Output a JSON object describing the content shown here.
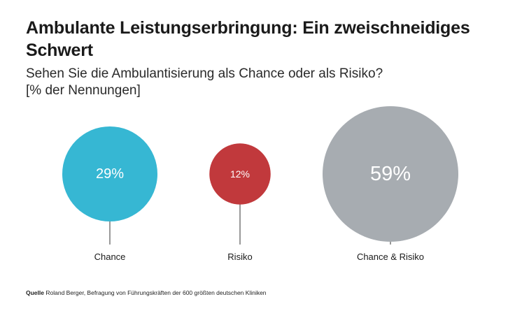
{
  "header": {
    "title": "Ambulante Leistungserbringung: Ein zweischneidiges Schwert",
    "subtitle_line1": "Sehen Sie die Ambulantisierung als Chance oder als Risiko?",
    "subtitle_line2": "[% der Nennungen]"
  },
  "chart_data": {
    "type": "bubble",
    "title": "Ambulante Leistungserbringung: Ein zweischneidiges Schwert",
    "subtitle": "Sehen Sie die Ambulantisierung als Chance oder als Risiko?",
    "unit": "% der Nennungen",
    "categories": [
      "Chance",
      "Risiko",
      "Chance & Risiko"
    ],
    "values": [
      29,
      12,
      59
    ],
    "value_labels": [
      "29%",
      "12%",
      "59%"
    ],
    "colors": [
      "#36b7d3",
      "#c1393c",
      "#a7acb1"
    ]
  },
  "footer": {
    "source_label": "Quelle",
    "source_text": "Roland Berger, Befragung von Führungskräften der 600 größten deutschen Kliniken"
  }
}
